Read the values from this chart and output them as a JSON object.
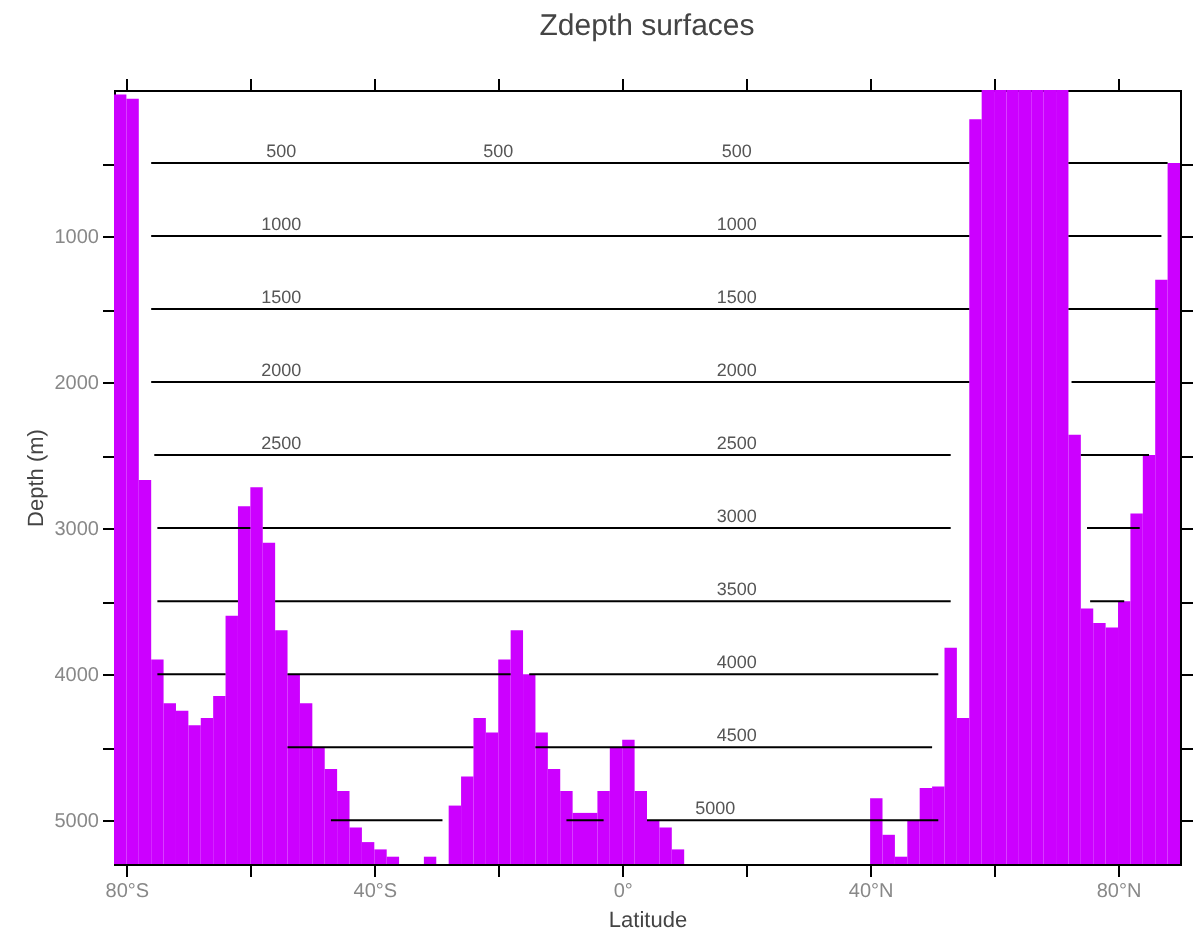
{
  "chart_data": {
    "type": "bar",
    "title": "Zdepth surfaces",
    "xlabel": "Latitude",
    "ylabel": "Depth (m)",
    "x": [
      -81,
      -79,
      -77,
      -75,
      -73,
      -71,
      -69,
      -67,
      -65,
      -63,
      -61,
      -59,
      -57,
      -55,
      -53,
      -51,
      -49,
      -47,
      -45,
      -43,
      -41,
      -39,
      -37,
      -35,
      -33,
      -31,
      -29,
      -27,
      -25,
      -23,
      -21,
      -19,
      -17,
      -15,
      -13,
      -11,
      -9,
      -7,
      -5,
      -3,
      -1,
      1,
      3,
      5,
      7,
      9,
      11,
      13,
      15,
      17,
      19,
      21,
      23,
      25,
      27,
      29,
      31,
      33,
      35,
      37,
      39,
      41,
      43,
      45,
      47,
      49,
      51,
      53,
      55,
      57,
      59,
      61,
      63,
      65,
      67,
      69,
      71,
      73,
      75,
      77,
      79,
      81,
      83,
      85,
      87,
      89
    ],
    "series": [
      {
        "color": "#cc00ff",
        "base": [
          5300,
          5300,
          5300,
          5300,
          5300,
          5300,
          5300,
          5300,
          5300,
          5300,
          5300,
          5300,
          5300,
          5300,
          5300,
          5300,
          5300,
          5300,
          5300,
          5300,
          5300,
          5300,
          5300,
          null,
          null,
          5300,
          null,
          5300,
          5300,
          5300,
          5300,
          5300,
          5300,
          5300,
          5300,
          5300,
          5300,
          5300,
          5300,
          5300,
          5300,
          5300,
          5300,
          5300,
          5300,
          5300,
          null,
          null,
          null,
          null,
          null,
          null,
          null,
          null,
          null,
          null,
          null,
          null,
          null,
          null,
          null,
          5300,
          5300,
          5300,
          5300,
          5300,
          5300,
          5300,
          5300,
          5300,
          5300,
          5300,
          5300,
          5300,
          5300,
          5300,
          5300,
          5300,
          5300,
          5300,
          5300,
          5300,
          5300,
          5300,
          5300,
          5300
        ],
        "values": [
          -5270,
          -5240,
          -2630,
          -1400,
          -1100,
          -1050,
          -950,
          -1000,
          -1150,
          -1700,
          -2450,
          -2580,
          -2200,
          -1600,
          -1300,
          -1100,
          -800,
          -650,
          -500,
          -250,
          -150,
          -100,
          -50,
          null,
          null,
          -50,
          null,
          -400,
          -600,
          -1000,
          -900,
          -1400,
          -1600,
          -1300,
          -900,
          -650,
          -500,
          -350,
          -350,
          -500,
          -800,
          -850,
          -500,
          -300,
          -250,
          -100,
          null,
          null,
          null,
          null,
          null,
          null,
          null,
          null,
          null,
          null,
          null,
          null,
          null,
          null,
          null,
          -450,
          -200,
          -50,
          -300,
          -520,
          -530,
          -1480,
          -1000,
          -5100,
          -5300,
          -5300,
          -5300,
          -5300,
          -5300,
          -5300,
          -5300,
          -2940,
          -1750,
          -1650,
          -1620,
          -1800,
          -2400,
          -2800,
          -4000,
          -4800
        ]
      },
      {
        "type": "line",
        "color": "#000000",
        "x": [
          -76,
          56,
          64,
          72,
          88
        ],
        "values": [
          500,
          500,
          null,
          500,
          500
        ]
      },
      {
        "type": "line",
        "color": "#000000",
        "x": [
          -76,
          56,
          64,
          72,
          87
        ],
        "values": [
          1000,
          1000,
          null,
          1000,
          1000
        ]
      },
      {
        "type": "line",
        "color": "#000000",
        "x": [
          -76,
          56,
          64,
          72,
          86.5
        ],
        "values": [
          1500,
          1500,
          null,
          1500,
          1500
        ]
      },
      {
        "type": "line",
        "color": "#000000",
        "x": [
          -76,
          56,
          64,
          72.5,
          86
        ],
        "values": [
          2000,
          2000,
          null,
          2000,
          2000
        ]
      },
      {
        "type": "line",
        "color": "#000000",
        "x": [
          -75.5,
          53,
          64,
          74,
          85
        ],
        "values": [
          2500,
          2500,
          null,
          2500,
          2500
        ]
      },
      {
        "type": "line",
        "color": "#000000",
        "x": [
          -75,
          -60,
          -59,
          -58,
          53,
          64,
          75,
          83.5
        ],
        "values": [
          3000,
          3000,
          null,
          3000,
          3000,
          null,
          3000,
          3000
        ]
      },
      {
        "type": "line",
        "color": "#000000",
        "x": [
          -75,
          -62,
          -59,
          -56,
          53,
          64,
          75.5,
          81
        ],
        "values": [
          3500,
          3500,
          null,
          3500,
          3500,
          null,
          3500,
          3500
        ]
      },
      {
        "type": "line",
        "color": "#000000",
        "x": [
          -75,
          -64,
          -59,
          -54,
          -18,
          -16,
          -15,
          51
        ],
        "values": [
          4000,
          4000,
          null,
          4000,
          4000,
          null,
          4000,
          4000
        ]
      },
      {
        "type": "line",
        "color": "#000000",
        "x": [
          -54,
          -24,
          -19,
          -14,
          50
        ],
        "values": [
          4500,
          4500,
          null,
          4500,
          4500
        ]
      },
      {
        "type": "line",
        "color": "#000000",
        "x": [
          -47,
          -29,
          -19,
          -9,
          -3,
          0,
          4,
          51
        ],
        "values": [
          5000,
          5000,
          null,
          5000,
          5000,
          null,
          5000,
          5000
        ]
      }
    ],
    "annotations": [
      {
        "text": "500",
        "x": -55,
        "y": 500
      },
      {
        "text": "500",
        "x": -20,
        "y": 500
      },
      {
        "text": "500",
        "x": 18.5,
        "y": 500
      },
      {
        "text": "1000",
        "x": -55,
        "y": 1000
      },
      {
        "text": "1000",
        "x": 18.5,
        "y": 1000
      },
      {
        "text": "1500",
        "x": -55,
        "y": 1500
      },
      {
        "text": "1500",
        "x": 18.5,
        "y": 1500
      },
      {
        "text": "2000",
        "x": -55,
        "y": 2000
      },
      {
        "text": "2000",
        "x": 18.5,
        "y": 2000
      },
      {
        "text": "2500",
        "x": -55,
        "y": 2500
      },
      {
        "text": "2500",
        "x": 18.5,
        "y": 2500
      },
      {
        "text": "3000",
        "x": 18.5,
        "y": 3000
      },
      {
        "text": "3500",
        "x": 18.5,
        "y": 3500
      },
      {
        "text": "4000",
        "x": 18.5,
        "y": 4000
      },
      {
        "text": "4500",
        "x": 18.5,
        "y": 4500
      },
      {
        "text": "5000",
        "x": 15,
        "y": 5000
      }
    ],
    "xlim": [
      -82,
      90
    ],
    "xticks": [
      {
        "value": -80,
        "label": "80°S"
      },
      {
        "value": -60,
        "label": null
      },
      {
        "value": -40,
        "label": "40°S"
      },
      {
        "value": -20,
        "label": null
      },
      {
        "value": 0,
        "label": "0°"
      },
      {
        "value": 20,
        "label": null
      },
      {
        "value": 40,
        "label": "40°N"
      },
      {
        "value": 60,
        "label": null
      },
      {
        "value": 80,
        "label": "80°N"
      }
    ],
    "ylim": [
      5300,
      0
    ],
    "yticks": [
      {
        "value": 500,
        "label": null
      },
      1000,
      {
        "value": 1500,
        "label": null
      },
      2000,
      {
        "value": 2500,
        "label": null
      },
      3000,
      {
        "value": 3500,
        "label": null
      },
      4000,
      {
        "value": 4500,
        "label": null
      },
      5000
    ],
    "grid": false
  }
}
